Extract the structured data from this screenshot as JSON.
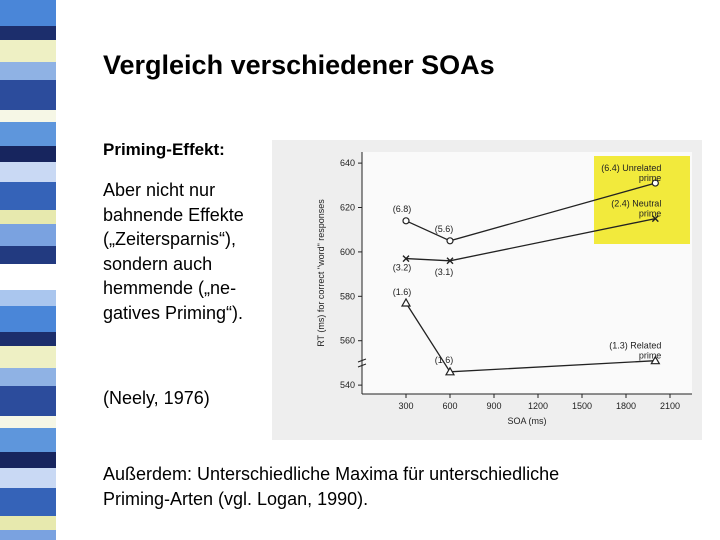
{
  "slide": {
    "title": "Vergleich verschiedener SOAs",
    "subheading": "Priming-Effekt:",
    "body_lines": [
      "Aber nicht nur",
      "bahnende Effekte",
      "(„Zeitersparnis“),",
      "sondern auch",
      "hemmende („ne-",
      "gatives Priming“)."
    ],
    "citation": "(Neely, 1976)",
    "footer_lines": [
      "Außerdem: Unterschiedliche Maxima für unterschiedliche",
      "Priming-Arten (vgl. Logan, 1990)."
    ]
  },
  "colors": {
    "highlight": "#f2ea3c",
    "stripe": [
      "#4a86d8",
      "#1c2e6c",
      "#eef0c4",
      "#8fb2e4",
      "#2c4c9c",
      "#f6f7e6",
      "#5e96dc",
      "#17255e",
      "#c9d9f4",
      "#3563b8",
      "#e7e9ae",
      "#7aa2e0",
      "#223a80",
      "#ffffff",
      "#aac6ee"
    ]
  },
  "chart_data": {
    "type": "line",
    "xlabel": "SOA (ms)",
    "ylabel": "RT (ms) for correct \"word\" responses",
    "xticks": [
      300,
      600,
      900,
      1200,
      1500,
      1800,
      2100
    ],
    "yticks": [
      540,
      560,
      580,
      600,
      620,
      640
    ],
    "xlim": [
      0,
      2250
    ],
    "ylim": [
      536,
      645
    ],
    "series": [
      {
        "name": "Unrelated prime",
        "legend_label": "(6.4) Unrelated prime",
        "marker": "circle",
        "points": [
          {
            "x": 300,
            "y": 614,
            "label": "(6.8)"
          },
          {
            "x": 600,
            "y": 605,
            "label": "(5.6)"
          },
          {
            "x": 2000,
            "y": 631
          }
        ]
      },
      {
        "name": "Neutral prime",
        "legend_label": "(2.4) Neutral prime",
        "marker": "x",
        "points": [
          {
            "x": 300,
            "y": 597,
            "label": "(3.2)"
          },
          {
            "x": 600,
            "y": 596,
            "label": "(3.1)"
          },
          {
            "x": 2000,
            "y": 615
          }
        ]
      },
      {
        "name": "Related prime",
        "legend_label": "(1.3) Related prime",
        "marker": "triangle",
        "points": [
          {
            "x": 300,
            "y": 577,
            "label": "(1.6)"
          },
          {
            "x": 600,
            "y": 546,
            "label": "(1.6)"
          },
          {
            "x": 2000,
            "y": 551
          }
        ]
      }
    ]
  }
}
